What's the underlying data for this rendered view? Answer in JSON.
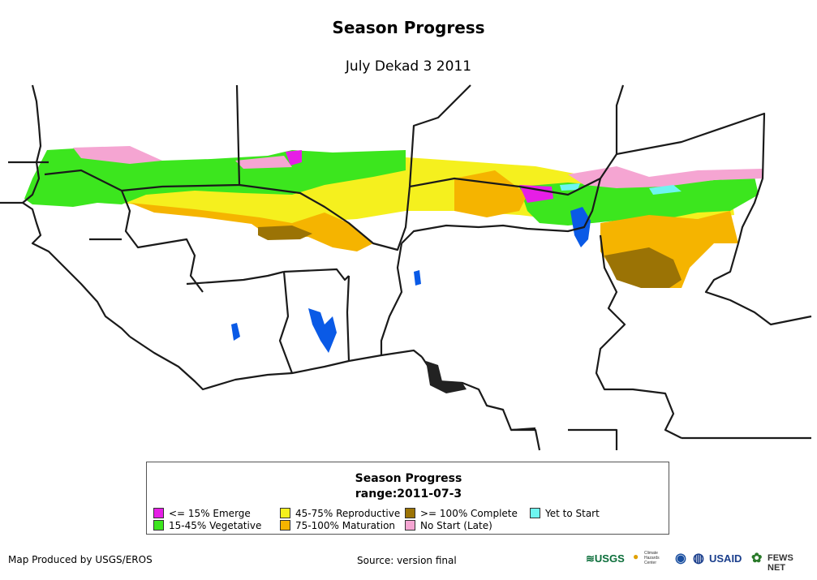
{
  "title": "Season Progress",
  "subtitle": "July Dekad 3 2011",
  "legend": {
    "title": "Season Progress",
    "range": "range:2011-07-3",
    "items": [
      {
        "label": "<= 15% Emerge",
        "color": "#e61ee6"
      },
      {
        "label": "15-45% Vegetative",
        "color": "#3ce61e"
      },
      {
        "label": "45-75% Reproductive",
        "color": "#f5f01e"
      },
      {
        "label": "75-100% Maturation",
        "color": "#f5b400"
      },
      {
        "label": ">= 100% Complete",
        "color": "#9b7305"
      },
      {
        "label": "No Start (Late)",
        "color": "#f5a5d2"
      },
      {
        "label": "Yet to Start",
        "color": "#6ef5f0"
      }
    ]
  },
  "footer": {
    "produced_by": "Map Produced by USGS/EROS",
    "source": "Source: version final"
  },
  "logos": {
    "usgs": "USGS",
    "chc": "Climate Hazards Center",
    "usaid": "USAID",
    "fewsnet": "FEWS NET"
  }
}
